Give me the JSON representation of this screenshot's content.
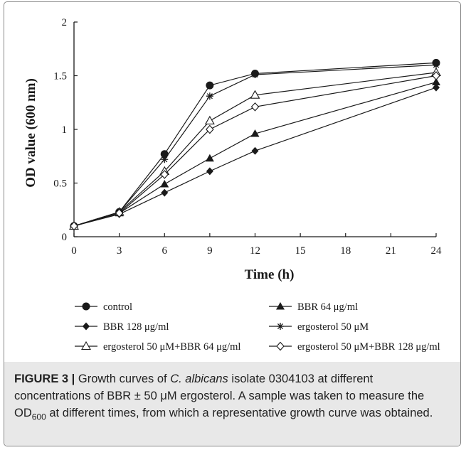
{
  "chart_data": {
    "type": "line",
    "title": "",
    "xlabel": "Time (h)",
    "ylabel": "OD value (600 nm)",
    "x": [
      0,
      3,
      6,
      9,
      12,
      24
    ],
    "xticks": [
      "0",
      "3",
      "6",
      "9",
      "12",
      "15",
      "18",
      "21",
      "24"
    ],
    "xtick_values": [
      0,
      3,
      6,
      9,
      12,
      15,
      18,
      21,
      24
    ],
    "yticks": [
      "0",
      "0.5",
      "1",
      "1.5",
      "2"
    ],
    "ytick_values": [
      0,
      0.5,
      1,
      1.5,
      2
    ],
    "xlim": [
      0,
      24
    ],
    "ylim": [
      0,
      2
    ],
    "grid": false,
    "legend_position": "bottom",
    "series": [
      {
        "name": "control",
        "marker": "filled-circle",
        "values": [
          0.1,
          0.23,
          0.77,
          1.41,
          1.52,
          1.62
        ]
      },
      {
        "name": "BBR 64 μg/ml",
        "marker": "filled-triangle",
        "values": [
          0.1,
          0.22,
          0.49,
          0.73,
          0.96,
          1.44
        ]
      },
      {
        "name": "BBR 128 μg/ml",
        "marker": "filled-diamond",
        "values": [
          0.1,
          0.21,
          0.41,
          0.61,
          0.8,
          1.39
        ]
      },
      {
        "name": "ergosterol 50 μM",
        "marker": "star",
        "values": [
          0.1,
          0.23,
          0.72,
          1.31,
          1.51,
          1.6
        ]
      },
      {
        "name": "ergosterol 50 μM+BBR 64 μg/ml",
        "marker": "open-triangle",
        "values": [
          0.1,
          0.23,
          0.61,
          1.08,
          1.32,
          1.53
        ]
      },
      {
        "name": "ergosterol 50 μM+BBR 128 μg/ml",
        "marker": "open-diamond",
        "values": [
          0.1,
          0.22,
          0.58,
          1.0,
          1.21,
          1.5
        ]
      }
    ]
  },
  "caption": {
    "label": "FIGURE 3 |",
    "text_1": " Growth curves of ",
    "species": "C. albicans",
    "text_2": " isolate 0304103 at different concentrations of BBR ± 50 μM ergosterol. A sample was taken to measure the OD",
    "subscript": "600",
    "text_3": " at different times, from which a representative growth curve was obtained."
  },
  "colors": {
    "line": "#1a1a1a",
    "frame": "#8a8a8a",
    "caption_bg": "#e8e8e8"
  }
}
